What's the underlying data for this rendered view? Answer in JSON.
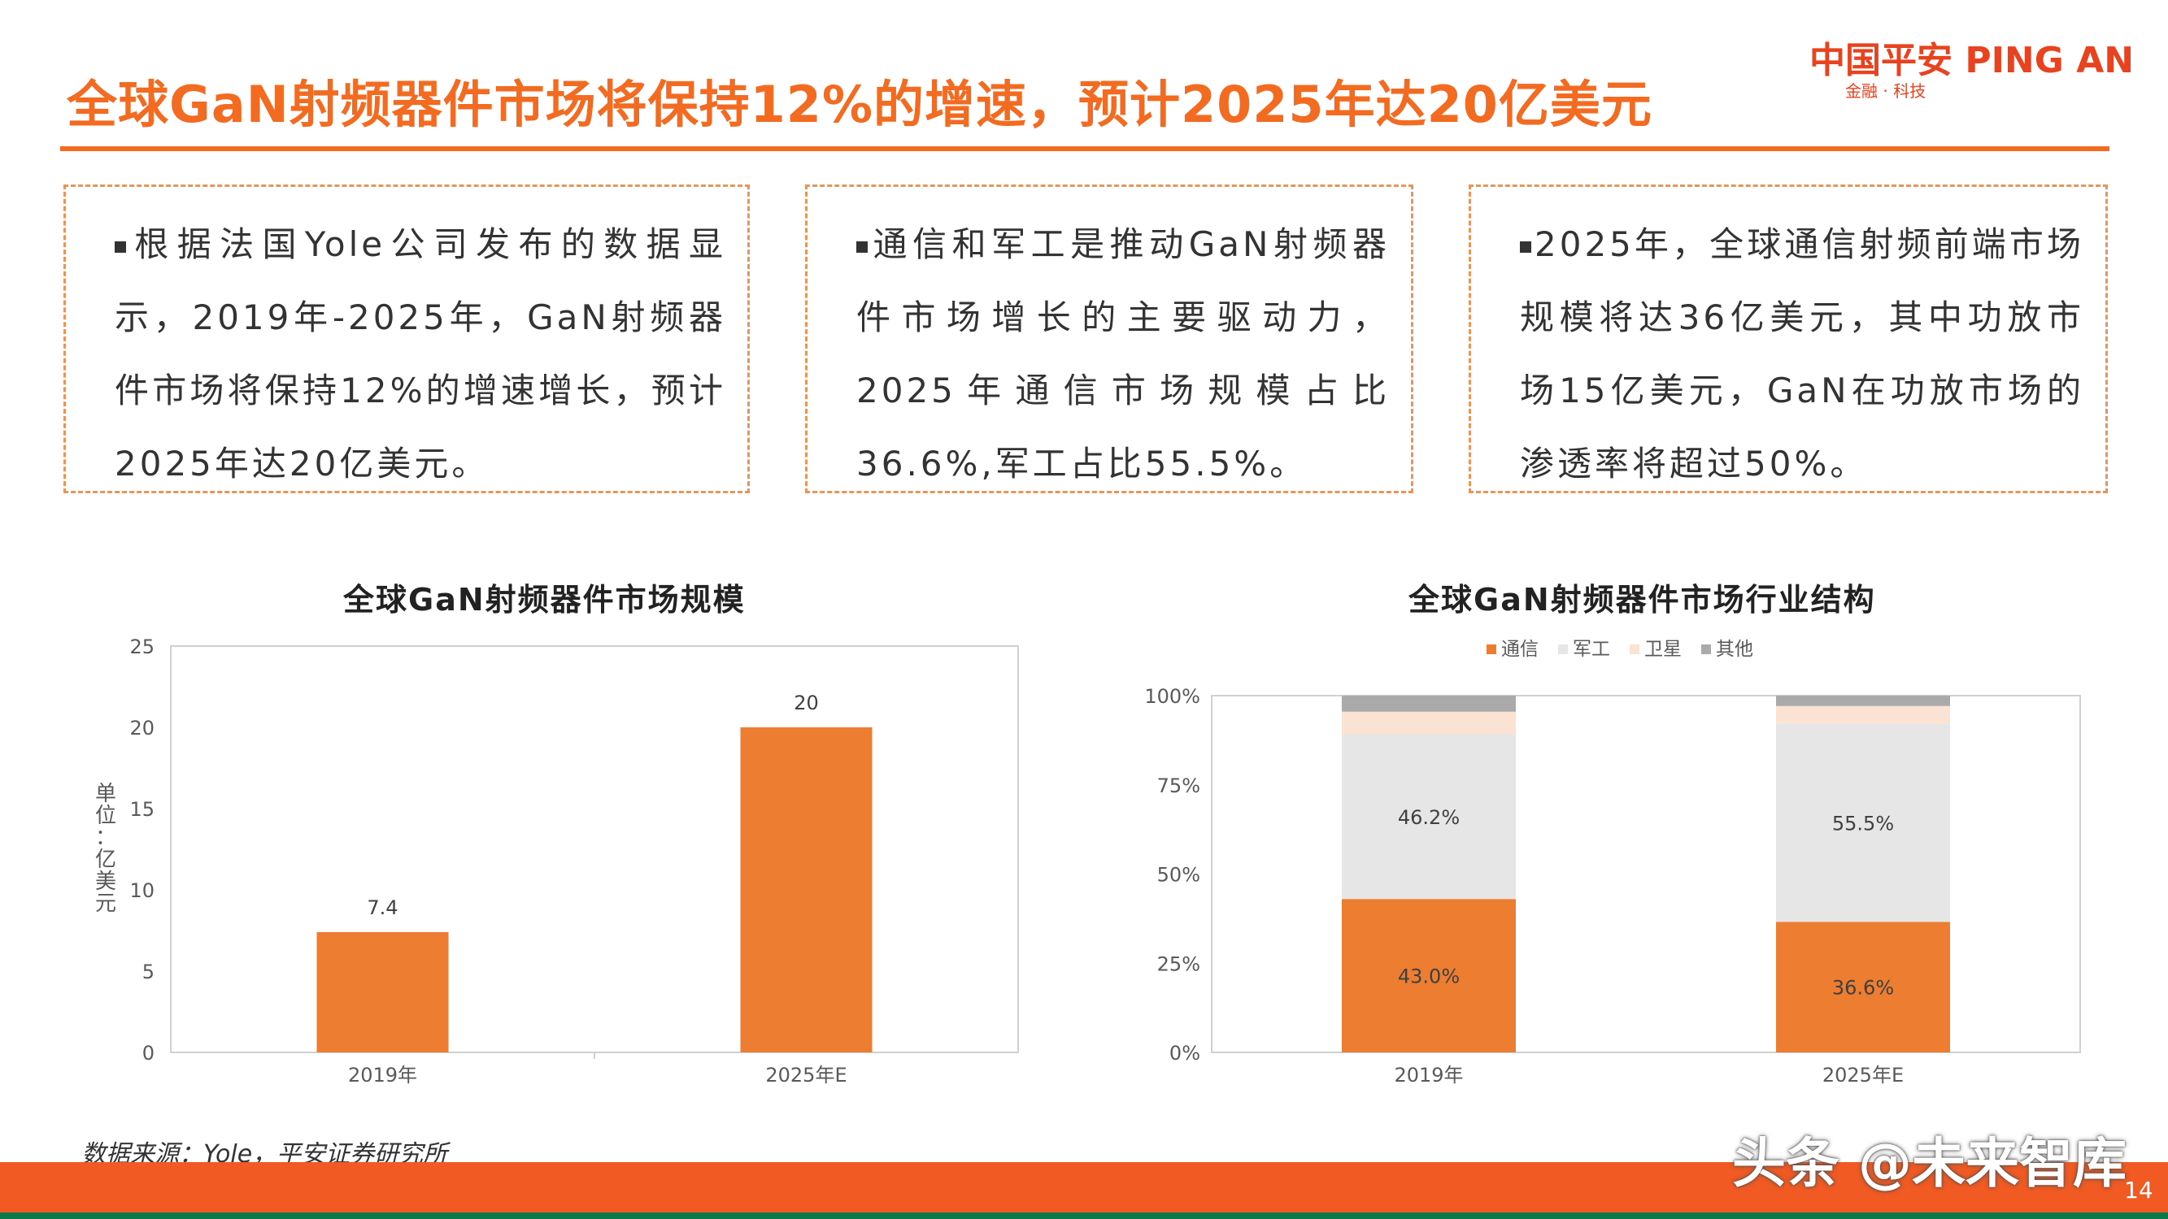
{
  "header": {
    "title": "全球GaN射频器件市场将保持12%的增速，预计2025年达20亿美元",
    "logo_main": "中国平安 PING AN",
    "logo_sub": "金融 · 科技"
  },
  "boxes": [
    {
      "text": "根据法国Yole公司发布的数据显示，2019年-2025年，GaN射频器件市场将保持12%的增速增长，预计2025年达20亿美元。"
    },
    {
      "text": "通信和军工是推动GaN射频器件市场增长的主要驱动力，2025年通信市场规模占比36.6%,军工占比55.5%。"
    },
    {
      "text": "2025年，全球通信射频前端市场规模将达36亿美元，其中功放市场15亿美元，GaN在功放市场的渗透率将超过50%。"
    }
  ],
  "chart_data": [
    {
      "type": "bar",
      "title": "全球GaN射频器件市场规模",
      "ylabel": "单位：亿美元",
      "categories": [
        "2019年",
        "2025年E"
      ],
      "values": [
        7.4,
        20
      ],
      "data_labels": [
        "7.4",
        "20"
      ],
      "ylim": [
        0,
        25
      ],
      "yticks": [
        0,
        5,
        10,
        15,
        20,
        25
      ],
      "ytick_labels": [
        "0",
        "5",
        "10",
        "15",
        "20",
        "25"
      ],
      "color": "#ed7d31"
    },
    {
      "type": "bar",
      "stacked": true,
      "title": "全球GaN射频器件市场行业结构",
      "categories": [
        "2019年",
        "2025年E"
      ],
      "legend_position": "top",
      "ylim": [
        0,
        100
      ],
      "ytick_labels": [
        "0%",
        "25%",
        "50%",
        "75%",
        "100%"
      ],
      "series": [
        {
          "name": "通信",
          "values": [
            43.0,
            36.6
          ],
          "labels": [
            "43.0%",
            "36.6%"
          ],
          "color": "#ed7d31"
        },
        {
          "name": "军工",
          "values": [
            46.2,
            55.5
          ],
          "labels": [
            "46.2%",
            "55.5%"
          ],
          "color": "#e6e6e6"
        },
        {
          "name": "卫星",
          "values": [
            6.3,
            5.0
          ],
          "color": "#fbe3d4"
        },
        {
          "name": "其他",
          "values": [
            4.5,
            2.9
          ],
          "color": "#aaaaaa"
        }
      ]
    }
  ],
  "footer": {
    "source": "数据来源：Yole，平安证券研究所",
    "watermark": "头条 @未来智库",
    "page_number": "14"
  }
}
